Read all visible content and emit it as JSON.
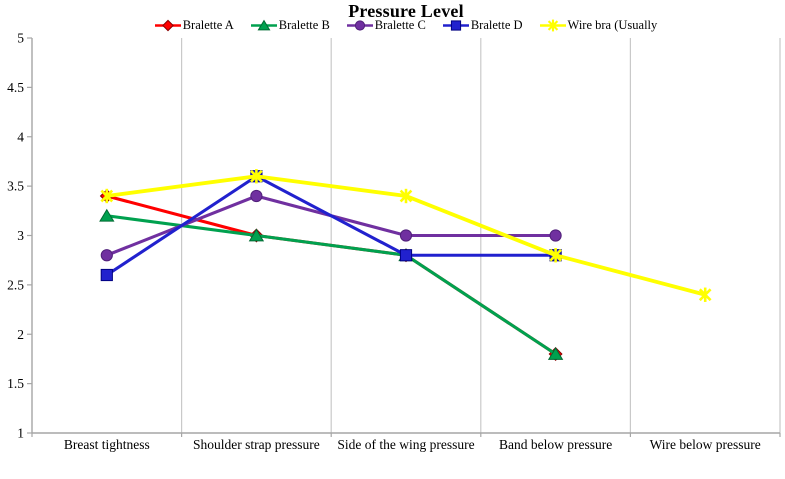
{
  "chart_data": {
    "type": "line",
    "title": "Pressure Level",
    "categories": [
      "Breast tightness",
      "Shoulder strap pressure",
      "Side of the wing pressure",
      "Band below pressure",
      "Wire below pressure"
    ],
    "series": [
      {
        "name": "Bralette A",
        "color": "#FF0000",
        "border": "#8B0000",
        "marker": "diamond",
        "values": [
          3.4,
          3.0,
          2.8,
          1.8,
          null
        ]
      },
      {
        "name": "Bralette B",
        "color": "#00A14F",
        "border": "#006B33",
        "marker": "triangle",
        "values": [
          3.2,
          3.0,
          2.8,
          1.8,
          null
        ]
      },
      {
        "name": "Bralette C",
        "color": "#7030A0",
        "border": "#50207A",
        "marker": "circle",
        "values": [
          2.8,
          3.4,
          3.0,
          3.0,
          null
        ]
      },
      {
        "name": "Bralette D",
        "color": "#2121CE",
        "border": "#000080",
        "marker": "square",
        "values": [
          2.6,
          3.6,
          2.8,
          2.8,
          null
        ]
      },
      {
        "name": "Wire bra (Usually",
        "color": "#FFFF00",
        "border": "#E3E300",
        "marker": "asterisk",
        "values": [
          3.4,
          3.6,
          3.4,
          2.8,
          2.4
        ]
      }
    ],
    "y_axis": {
      "min": 1,
      "max": 5,
      "step": 0.5,
      "tick_labels": [
        "5",
        "4.5",
        "4",
        "3.5",
        "3",
        "2.5",
        "2",
        "1.5",
        "1"
      ]
    },
    "legend_position": "top",
    "gridlines": "vertical",
    "grid_color": "#C9C9C9",
    "axis_color": "#A6A6A6",
    "text_color": "#000000"
  }
}
